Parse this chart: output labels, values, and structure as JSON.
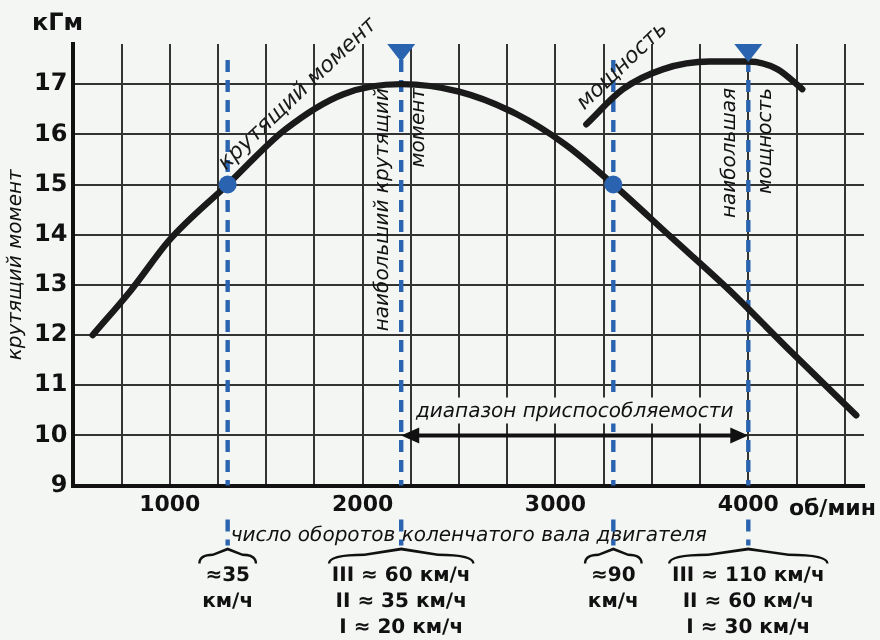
{
  "chart_data": {
    "type": "line",
    "xlabel": "число оборотов коленчатого вала двигателя",
    "ylabel": "крутящий момент",
    "xlim": [
      500,
      4600
    ],
    "xticks": [
      {
        "value": 500,
        "label": null
      },
      {
        "value": 750,
        "label": null
      },
      1000,
      {
        "value": 1250,
        "label": null
      },
      {
        "value": 1500,
        "label": null
      },
      {
        "value": 1750,
        "label": null
      },
      2000,
      {
        "value": 2250,
        "label": null
      },
      {
        "value": 2500,
        "label": null
      },
      {
        "value": 2750,
        "label": null
      },
      3000,
      {
        "value": 3250,
        "label": null
      },
      {
        "value": 3500,
        "label": null
      },
      {
        "value": 3750,
        "label": null
      },
      4000,
      {
        "value": 4250,
        "label": null
      },
      {
        "value": 4500,
        "label": null
      }
    ],
    "ylim": [
      9,
      17.8
    ],
    "yticks": [
      9,
      10,
      11,
      12,
      13,
      14,
      15,
      16,
      17
    ],
    "grid": true,
    "legend": false,
    "marker": "none",
    "line_style": "solid",
    "series": [
      {
        "name": "крутящий момент",
        "color": "#1a1a1a",
        "x": [
          600,
          800,
          1000,
          1300,
          1600,
          1900,
          2200,
          2500,
          2800,
          3050,
          3300,
          3600,
          3900,
          4200,
          4560
        ],
        "values": [
          12,
          12.9,
          13.9,
          15.0,
          16.1,
          16.8,
          17,
          16.85,
          16.4,
          15.8,
          15.0,
          13.95,
          12.9,
          11.75,
          10.4
        ]
      },
      {
        "name": "мощность",
        "color": "#1a1a1a",
        "x": [
          3160,
          3350,
          3560,
          3800,
          4000,
          4150,
          4280
        ],
        "values": [
          16.2,
          16.9,
          17.3,
          17.45,
          17.45,
          17.3,
          16.9
        ]
      }
    ],
    "ref_lines": [
      {
        "axis": "x",
        "value": 1300,
        "label": null,
        "color": "#2a64b0",
        "line_style": "dashed"
      },
      {
        "axis": "x",
        "value": 2200,
        "label": "наибольший крутящий момент",
        "color": "#2a64b0",
        "line_style": "dashed"
      },
      {
        "axis": "x",
        "value": 3300,
        "label": null,
        "color": "#2a64b0",
        "line_style": "dashed"
      },
      {
        "axis": "x",
        "value": 4000,
        "label": "наибольшая мощность",
        "color": "#2a64b0",
        "line_style": "dashed"
      }
    ],
    "annotations": [
      "кГм",
      "об/мин",
      "диапазон приспособляемости",
      "≈35\nкм/ч",
      "III ≈ 60 км/ч\nII ≈ 35 км/ч\nI ≈ 20 км/ч",
      "≈90\nкм/ч",
      "III ≈ 110 км/ч\nII ≈ 60 км/ч\nI ≈ 30 км/ч"
    ]
  }
}
